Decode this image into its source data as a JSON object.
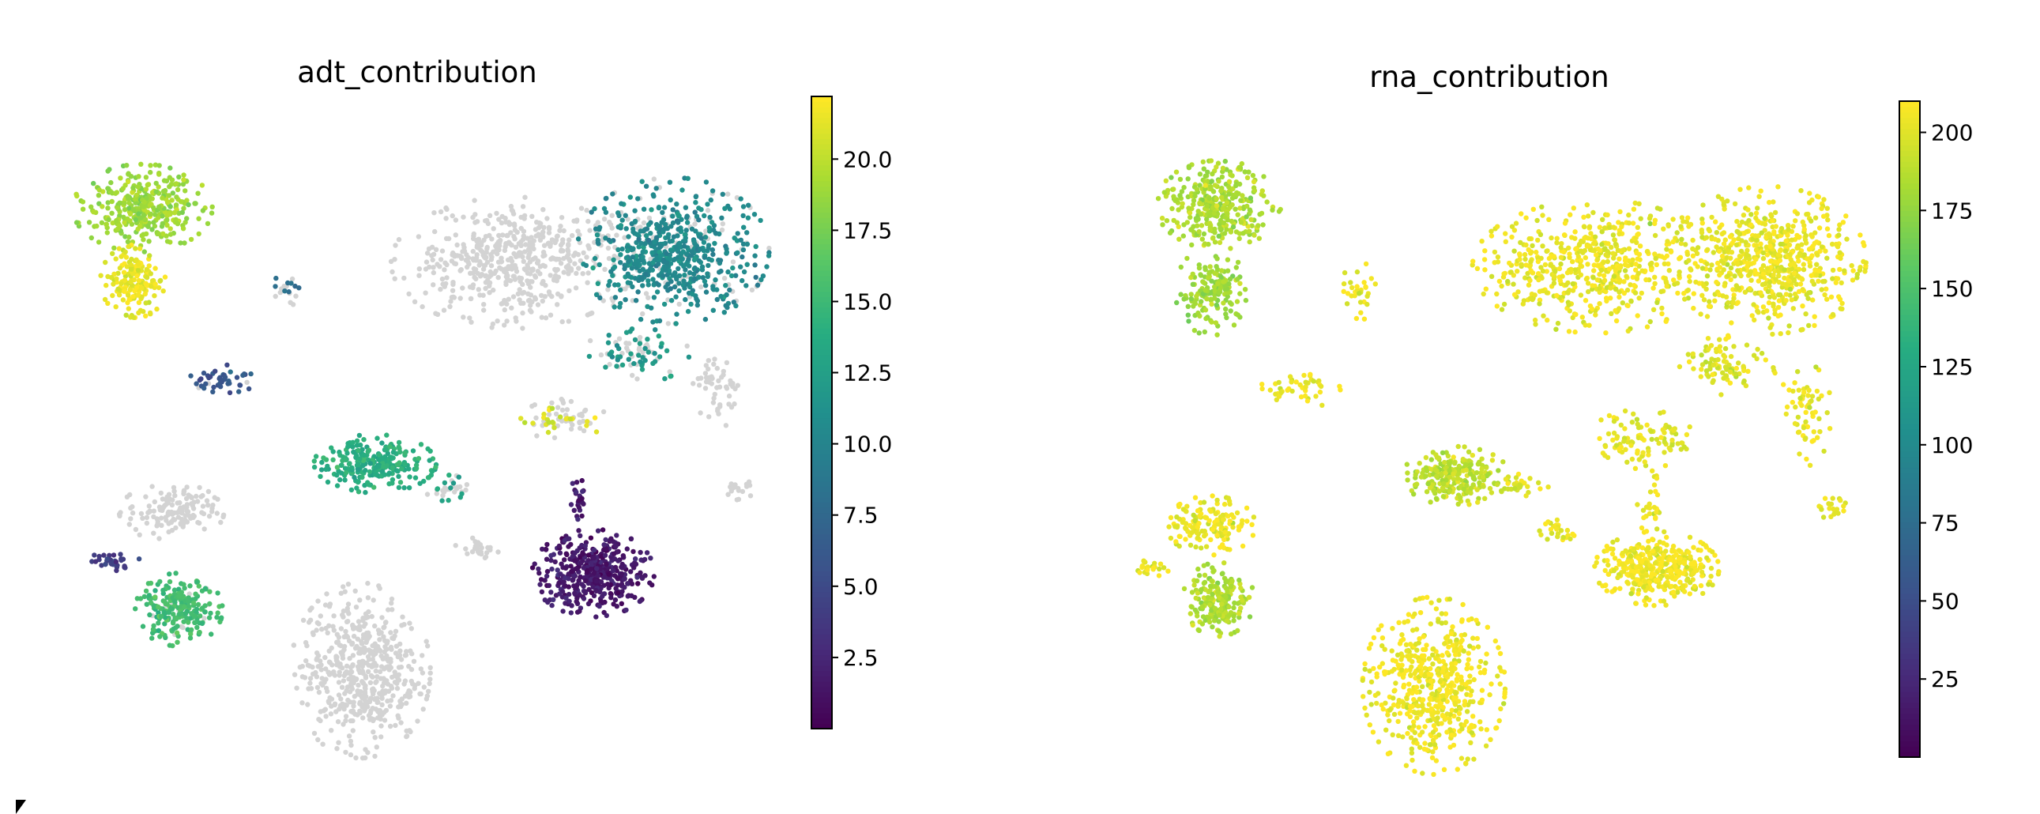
{
  "colors": {
    "na_gray": "#d3d3d3",
    "viridis": [
      "#440154",
      "#472c7a",
      "#3b528b",
      "#2c728e",
      "#21908d",
      "#27ad81",
      "#5cc863",
      "#aadc32",
      "#fde725"
    ]
  },
  "chart_data": [
    {
      "type": "scatter",
      "title": "adt_contribution",
      "colorbar": {
        "label": "",
        "min": 0,
        "max": 22.2,
        "ticks": [
          2.5,
          5.0,
          7.5,
          10.0,
          12.5,
          15.0,
          17.5,
          20.0
        ],
        "tick_labels": [
          "2.5",
          "5.0",
          "7.5",
          "10.0",
          "12.5",
          "15.0",
          "17.5",
          "20.0"
        ]
      },
      "axes_visible": false,
      "x_range": [
        0,
        100
      ],
      "y_range": [
        0,
        100
      ],
      "clusters": [
        {
          "name": "c1",
          "cx": 12,
          "cy": 84,
          "rx": 8,
          "ry": 6,
          "n": 340,
          "value": 19,
          "na_frac": 0
        },
        {
          "name": "c2",
          "cx": 11,
          "cy": 72,
          "rx": 4,
          "ry": 5,
          "n": 170,
          "value": 21.5,
          "na_frac": 0
        },
        {
          "name": "c3",
          "cx": 23,
          "cy": 56,
          "rx": 4.5,
          "ry": 2,
          "n": 45,
          "value": 6,
          "na_frac": 0.1
        },
        {
          "name": "c4",
          "cx": 32,
          "cy": 71,
          "rx": 2,
          "ry": 2.5,
          "n": 20,
          "value": 8,
          "na_frac": 0.5
        },
        {
          "name": "c5",
          "cx": 63,
          "cy": 75,
          "rx": 14,
          "ry": 9,
          "n": 520,
          "value": null,
          "na_frac": 1
        },
        {
          "name": "c6",
          "cx": 85,
          "cy": 77,
          "rx": 11,
          "ry": 10,
          "n": 620,
          "value": 10.5,
          "na_frac": 0.15
        },
        {
          "name": "c7",
          "cx": 80,
          "cy": 60,
          "rx": 6,
          "ry": 4,
          "n": 80,
          "value": 12,
          "na_frac": 0.4
        },
        {
          "name": "c8",
          "cx": 91,
          "cy": 55,
          "rx": 3,
          "ry": 6,
          "n": 50,
          "value": null,
          "na_frac": 1
        },
        {
          "name": "c9",
          "cx": 44,
          "cy": 42,
          "rx": 7,
          "ry": 4,
          "n": 260,
          "value": 14,
          "na_frac": 0
        },
        {
          "name": "c10",
          "cx": 54,
          "cy": 38,
          "rx": 3,
          "ry": 2,
          "n": 30,
          "value": 12.5,
          "na_frac": 0.6
        },
        {
          "name": "c11",
          "cx": 70,
          "cy": 49,
          "rx": 5,
          "ry": 3,
          "n": 70,
          "value": 21,
          "na_frac": 0.6
        },
        {
          "name": "c12",
          "cx": 74,
          "cy": 24,
          "rx": 7,
          "ry": 6,
          "n": 420,
          "value": 1.5,
          "na_frac": 0
        },
        {
          "name": "c13",
          "cx": 72,
          "cy": 36,
          "rx": 1,
          "ry": 5,
          "n": 25,
          "value": 1.5,
          "na_frac": 0
        },
        {
          "name": "c14",
          "cx": 16,
          "cy": 34,
          "rx": 6,
          "ry": 4,
          "n": 140,
          "value": null,
          "na_frac": 1
        },
        {
          "name": "c15",
          "cx": 17,
          "cy": 18,
          "rx": 5,
          "ry": 5,
          "n": 220,
          "value": 15.5,
          "na_frac": 0.05
        },
        {
          "name": "c16",
          "cx": 8,
          "cy": 26,
          "rx": 3,
          "ry": 1.5,
          "n": 30,
          "value": 4,
          "na_frac": 0
        },
        {
          "name": "c17",
          "cx": 42,
          "cy": 8,
          "rx": 8,
          "ry": 12,
          "n": 540,
          "value": null,
          "na_frac": 1
        },
        {
          "name": "c18",
          "cx": 94,
          "cy": 38,
          "rx": 2,
          "ry": 2,
          "n": 20,
          "value": null,
          "na_frac": 1
        },
        {
          "name": "c19",
          "cx": 58,
          "cy": 28,
          "rx": 2.5,
          "ry": 2,
          "n": 25,
          "value": null,
          "na_frac": 1
        }
      ]
    },
    {
      "type": "scatter",
      "title": "rna_contribution",
      "colorbar": {
        "label": "",
        "min": 0,
        "max": 210,
        "ticks": [
          25,
          50,
          75,
          100,
          125,
          150,
          175,
          200
        ],
        "tick_labels": [
          "25",
          "50",
          "75",
          "100",
          "125",
          "150",
          "175",
          "200"
        ]
      },
      "axes_visible": false,
      "x_range": [
        0,
        100
      ],
      "y_range": [
        0,
        100
      ],
      "clusters": [
        {
          "name": "c1",
          "cx": 13,
          "cy": 86,
          "rx": 7,
          "ry": 6,
          "n": 330,
          "value": 185,
          "na_frac": 0
        },
        {
          "name": "c2",
          "cx": 12,
          "cy": 72,
          "rx": 4,
          "ry": 6,
          "n": 160,
          "value": 180,
          "na_frac": 0
        },
        {
          "name": "c3",
          "cx": 24,
          "cy": 56,
          "rx": 4.5,
          "ry": 2.5,
          "n": 45,
          "value": 205,
          "na_frac": 0
        },
        {
          "name": "c4",
          "cx": 32,
          "cy": 72,
          "rx": 2.5,
          "ry": 4,
          "n": 30,
          "value": 205,
          "na_frac": 0
        },
        {
          "name": "c5",
          "cx": 64,
          "cy": 76,
          "rx": 14,
          "ry": 9,
          "n": 560,
          "value": 205,
          "na_frac": 0
        },
        {
          "name": "c6",
          "cx": 87,
          "cy": 77,
          "rx": 11,
          "ry": 10,
          "n": 620,
          "value": 205,
          "na_frac": 0
        },
        {
          "name": "c7",
          "cx": 81,
          "cy": 60,
          "rx": 6,
          "ry": 4,
          "n": 90,
          "value": 200,
          "na_frac": 0
        },
        {
          "name": "c8",
          "cx": 92,
          "cy": 52,
          "rx": 3,
          "ry": 7,
          "n": 60,
          "value": 205,
          "na_frac": 0
        },
        {
          "name": "c9",
          "cx": 45,
          "cy": 42,
          "rx": 6,
          "ry": 4,
          "n": 240,
          "value": 190,
          "na_frac": 0
        },
        {
          "name": "c10",
          "cx": 54,
          "cy": 40,
          "rx": 3,
          "ry": 2,
          "n": 30,
          "value": 200,
          "na_frac": 0
        },
        {
          "name": "c11",
          "cx": 70,
          "cy": 48,
          "rx": 6,
          "ry": 4,
          "n": 100,
          "value": 203,
          "na_frac": 0
        },
        {
          "name": "c12",
          "cx": 72,
          "cy": 27,
          "rx": 7,
          "ry": 5,
          "n": 400,
          "value": 207,
          "na_frac": 0
        },
        {
          "name": "c13",
          "cx": 71,
          "cy": 37,
          "rx": 1.5,
          "ry": 5,
          "n": 30,
          "value": 205,
          "na_frac": 0
        },
        {
          "name": "c14",
          "cx": 12,
          "cy": 34,
          "rx": 5,
          "ry": 4,
          "n": 150,
          "value": 205,
          "na_frac": 0
        },
        {
          "name": "c15",
          "cx": 13,
          "cy": 22,
          "rx": 4,
          "ry": 5,
          "n": 200,
          "value": 185,
          "na_frac": 0
        },
        {
          "name": "c16",
          "cx": 4,
          "cy": 27,
          "rx": 2,
          "ry": 1.5,
          "n": 25,
          "value": 205,
          "na_frac": 0
        },
        {
          "name": "c17",
          "cx": 42,
          "cy": 8,
          "rx": 8,
          "ry": 12,
          "n": 540,
          "value": 207,
          "na_frac": 0
        },
        {
          "name": "c18",
          "cx": 96,
          "cy": 37,
          "rx": 2,
          "ry": 2,
          "n": 20,
          "value": 205,
          "na_frac": 0
        },
        {
          "name": "c19",
          "cx": 58,
          "cy": 33,
          "rx": 2.5,
          "ry": 2,
          "n": 25,
          "value": 205,
          "na_frac": 0
        }
      ]
    }
  ]
}
